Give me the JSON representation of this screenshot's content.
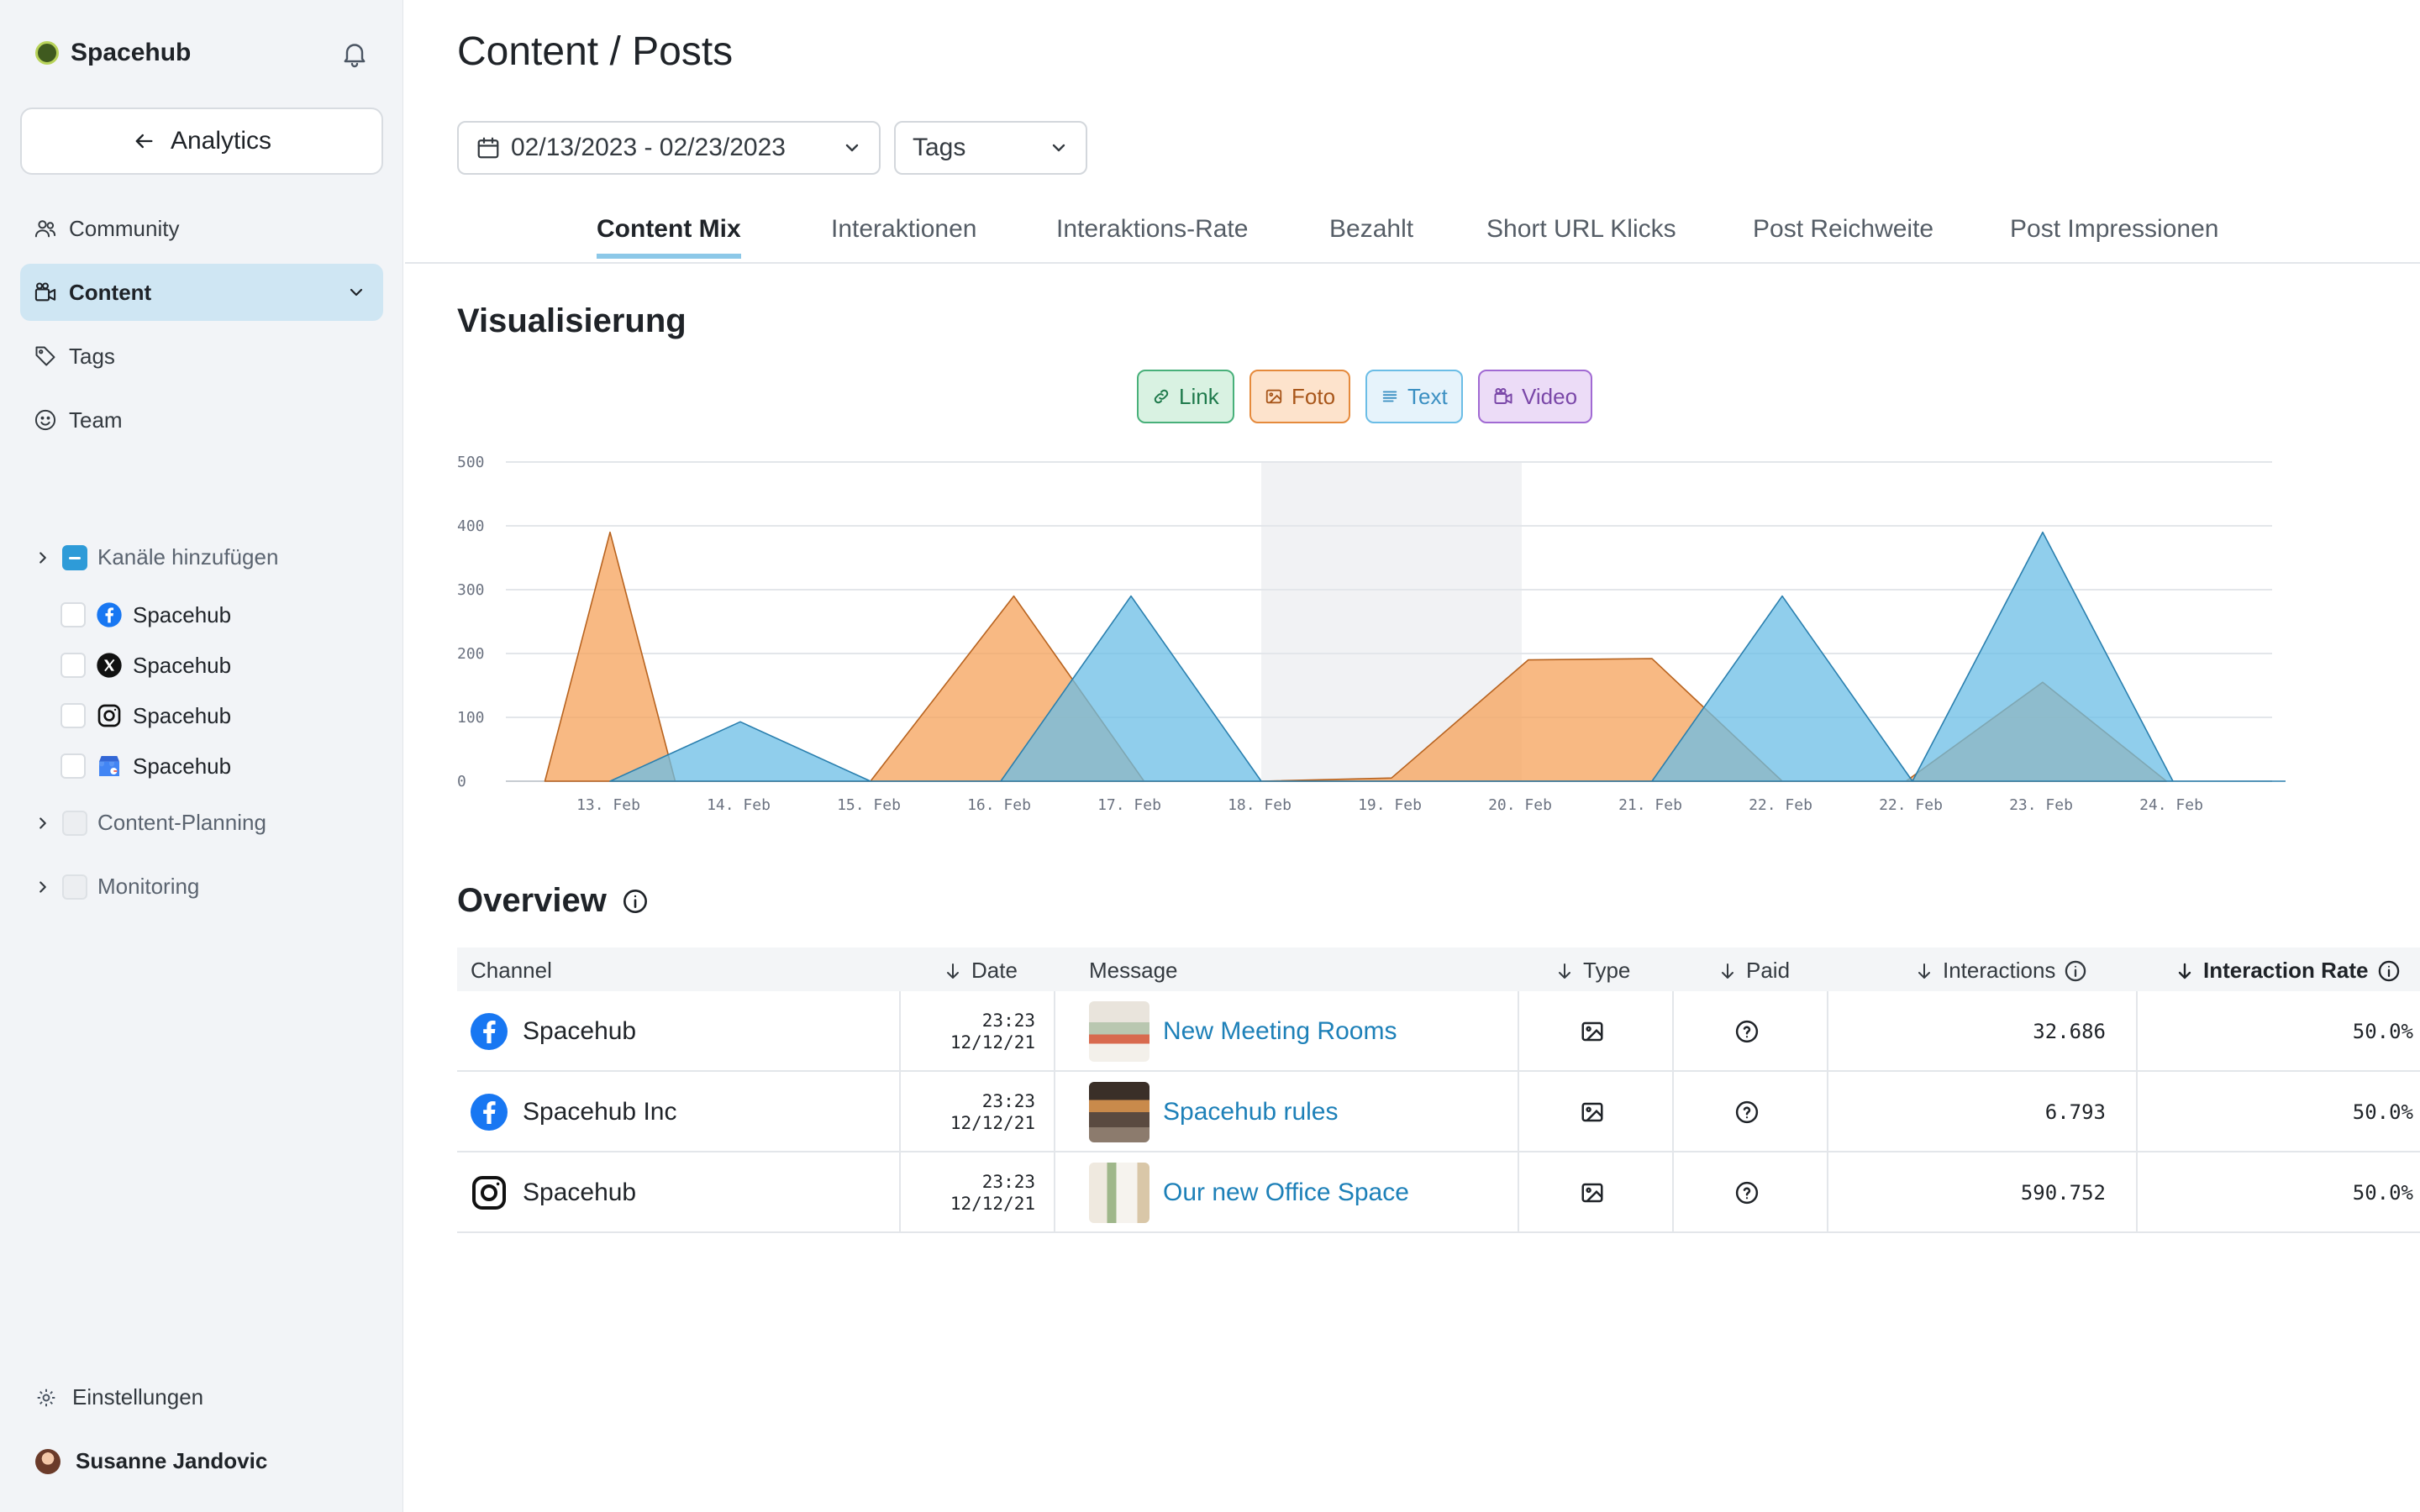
{
  "sidebar": {
    "brand": "Spacehub",
    "back_label": "Analytics",
    "nav": [
      {
        "label": "Community",
        "icon": "users-icon"
      },
      {
        "label": "Content",
        "icon": "content-icon"
      },
      {
        "label": "Tags",
        "icon": "tag-icon"
      },
      {
        "label": "Team",
        "icon": "smile-icon"
      }
    ],
    "channels_group": "Kanäle hinzufügen",
    "channels": [
      {
        "label": "Spacehub",
        "network": "facebook"
      },
      {
        "label": "Spacehub",
        "network": "x"
      },
      {
        "label": "Spacehub",
        "network": "instagram"
      },
      {
        "label": "Spacehub",
        "network": "google-business"
      }
    ],
    "groups": [
      "Content-Planning",
      "Monitoring"
    ],
    "settings_label": "Einstellungen",
    "user_name": "Susanne Jandovic"
  },
  "header": {
    "title": "Content / Posts",
    "date_range": "02/13/2023 - 02/23/2023",
    "tags_label": "Tags"
  },
  "tabs": [
    "Content Mix",
    "Interaktionen",
    "Interaktions-Rate",
    "Bezahlt",
    "Short URL Klicks",
    "Post Reichweite",
    "Post Impressionen"
  ],
  "visualisierung": {
    "title": "Visualisierung",
    "legend": [
      {
        "label": "Link",
        "color": "#48b07a"
      },
      {
        "label": "Foto",
        "color": "#f6a25a"
      },
      {
        "label": "Text",
        "color": "#6bbde6"
      },
      {
        "label": "Video",
        "color": "#a16ad3"
      }
    ]
  },
  "chart_data": {
    "type": "area",
    "categories": [
      "13. Feb",
      "14. Feb",
      "15. Feb",
      "16. Feb",
      "17. Feb",
      "18. Feb",
      "19. Feb",
      "20. Feb",
      "21. Feb",
      "22. Feb",
      "22. Feb",
      "23. Feb",
      "24. Feb"
    ],
    "ylim": [
      0,
      500
    ],
    "yticks": [
      0,
      100,
      200,
      300,
      400,
      500
    ],
    "grid": true,
    "highlight_range": [
      "18. Feb",
      "20. Feb"
    ],
    "series": [
      {
        "name": "Foto",
        "color": "#f6a25a",
        "points": [
          [
            -0.5,
            0
          ],
          [
            0,
            390
          ],
          [
            0.5,
            0
          ],
          [
            2,
            0
          ],
          [
            3.1,
            290
          ],
          [
            4.1,
            0
          ],
          [
            5,
            0
          ],
          [
            6,
            5
          ],
          [
            7.05,
            190
          ],
          [
            8,
            192
          ],
          [
            9,
            0
          ],
          [
            9.95,
            0
          ],
          [
            11,
            155
          ],
          [
            11.95,
            0
          ]
        ]
      },
      {
        "name": "Text",
        "color": "#6bbde6",
        "points": [
          [
            0,
            0
          ],
          [
            1,
            93
          ],
          [
            2,
            0
          ],
          [
            3,
            0
          ],
          [
            4,
            290
          ],
          [
            5,
            0
          ],
          [
            5.5,
            0
          ],
          [
            8,
            0
          ],
          [
            9,
            290
          ],
          [
            10,
            0
          ],
          [
            11,
            390
          ],
          [
            12,
            0
          ],
          [
            13,
            0
          ]
        ]
      }
    ]
  },
  "overview": {
    "title": "Overview",
    "columns": [
      "Channel",
      "Date",
      "Message",
      "Type",
      "Paid",
      "Interactions",
      "Interaction Rate"
    ],
    "rows": [
      {
        "network": "facebook",
        "channel": "Spacehub",
        "time": "23:23",
        "date": "12/12/21",
        "message": "New Meeting Rooms",
        "interactions": "32.686",
        "rate": "50.0%"
      },
      {
        "network": "facebook",
        "channel": "Spacehub Inc",
        "time": "23:23",
        "date": "12/12/21",
        "message": "Spacehub rules",
        "interactions": "6.793",
        "rate": "50.0%"
      },
      {
        "network": "instagram",
        "channel": "Spacehub",
        "time": "23:23",
        "date": "12/12/21",
        "message": "Our new Office Space",
        "interactions": "590.752",
        "rate": "50.0%"
      }
    ]
  }
}
